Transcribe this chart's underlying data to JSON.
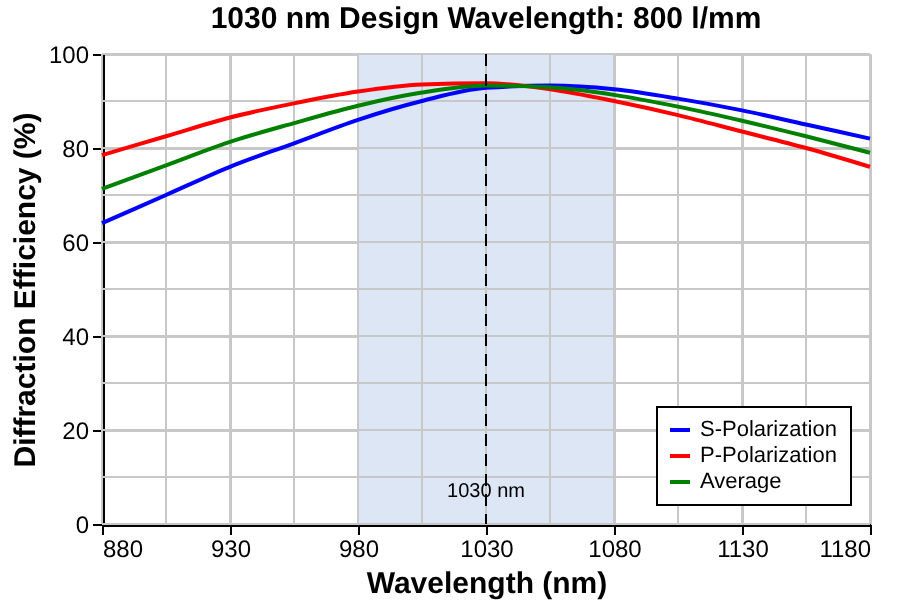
{
  "chart_data": {
    "type": "line",
    "title": "1030 nm Design Wavelength: 800 l/mm",
    "xlabel": "Wavelength (nm)",
    "ylabel": "Diffraction Efficiency (%)",
    "x": [
      880,
      905,
      930,
      955,
      980,
      1005,
      1030,
      1055,
      1080,
      1105,
      1130,
      1155,
      1180
    ],
    "series": [
      {
        "name": "S-Polarization",
        "color": "#0000ff",
        "values": [
          64,
          70,
          76,
          81,
          86,
          90,
          92.8,
          93.3,
          92.5,
          90.5,
          88,
          85,
          82
        ]
      },
      {
        "name": "P-Polarization",
        "color": "#ff0000",
        "values": [
          78.5,
          82.5,
          86.5,
          89.5,
          92,
          93.5,
          93.8,
          92.5,
          90,
          87,
          83.5,
          80,
          76
        ]
      },
      {
        "name": "Average",
        "color": "#008000",
        "values": [
          71.3,
          76.3,
          81.3,
          85.3,
          89,
          91.8,
          93.3,
          92.9,
          91.3,
          88.8,
          85.8,
          82.5,
          79
        ]
      }
    ],
    "xlim": [
      880,
      1180
    ],
    "xticks": [
      880,
      {
        "value": 905,
        "label": null
      },
      930,
      {
        "value": 955,
        "label": null
      },
      980,
      {
        "value": 1005,
        "label": null
      },
      1030,
      {
        "value": 1055,
        "label": null
      },
      1080,
      {
        "value": 1105,
        "label": null
      },
      1130,
      {
        "value": 1155,
        "label": null
      },
      1180
    ],
    "ylim": [
      0,
      100
    ],
    "yticks": [
      0,
      {
        "value": 10,
        "label": null
      },
      20,
      {
        "value": 30,
        "label": null
      },
      40,
      {
        "value": 50,
        "label": null
      },
      60,
      {
        "value": 70,
        "label": null
      },
      80,
      {
        "value": 90,
        "label": null
      },
      100
    ],
    "bands": [
      {
        "axis": "x",
        "from": 980,
        "to": 1080,
        "color": "#dce6f5"
      }
    ],
    "ref_lines": [
      {
        "axis": "x",
        "value": 1030,
        "label": "1030 nm",
        "color": "#000000",
        "line_style": "dashed"
      }
    ],
    "grid": true,
    "legend": "bottom right",
    "marker": "none",
    "line_style": "solid"
  }
}
